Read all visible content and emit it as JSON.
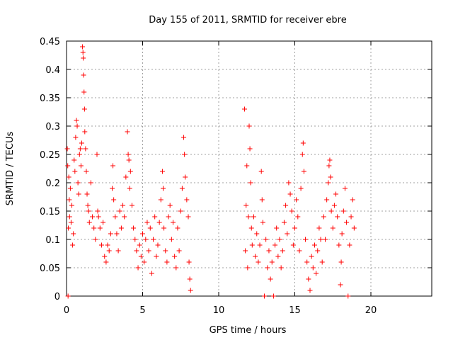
{
  "chart_data": {
    "type": "scatter",
    "title": "Day 155 of 2011, SRMTID for receiver ebre",
    "xlabel": "GPS time / hours",
    "ylabel": "SRMTID / TECUs",
    "xlim": [
      0,
      24
    ],
    "ylim": [
      0,
      0.45
    ],
    "x_ticks": [
      0,
      5,
      10,
      15,
      20
    ],
    "y_ticks": [
      0,
      0.05,
      0.1,
      0.15,
      0.2,
      0.25,
      0.3,
      0.35,
      0.4,
      0.45
    ],
    "x_tick_labels": [
      "0",
      "5",
      "10",
      "15",
      "20"
    ],
    "y_tick_labels": [
      "0",
      "0.05",
      "0.1",
      "0.15",
      "0.2",
      "0.25",
      "0.3",
      "0.35",
      "0.4",
      "0.45"
    ],
    "grid": true,
    "marker": "+",
    "color": "#ff0000",
    "series": [
      {
        "name": "SRMTID",
        "points": [
          [
            0.05,
            0.26
          ],
          [
            0.08,
            0.23
          ],
          [
            0.1,
            0.0
          ],
          [
            0.12,
            0.12
          ],
          [
            0.15,
            0.21
          ],
          [
            0.18,
            0.17
          ],
          [
            0.2,
            0.14
          ],
          [
            0.25,
            0.19
          ],
          [
            0.3,
            0.13
          ],
          [
            0.35,
            0.16
          ],
          [
            0.4,
            0.09
          ],
          [
            0.45,
            0.11
          ],
          [
            0.5,
            0.24
          ],
          [
            0.55,
            0.22
          ],
          [
            0.6,
            0.28
          ],
          [
            0.65,
            0.31
          ],
          [
            0.7,
            0.3
          ],
          [
            0.75,
            0.2
          ],
          [
            0.8,
            0.18
          ],
          [
            0.85,
            0.25
          ],
          [
            0.9,
            0.26
          ],
          [
            0.95,
            0.23
          ],
          [
            1.0,
            0.27
          ],
          [
            1.05,
            0.44
          ],
          [
            1.08,
            0.43
          ],
          [
            1.1,
            0.42
          ],
          [
            1.12,
            0.39
          ],
          [
            1.15,
            0.36
          ],
          [
            1.18,
            0.33
          ],
          [
            1.2,
            0.29
          ],
          [
            1.25,
            0.26
          ],
          [
            1.3,
            0.22
          ],
          [
            1.35,
            0.18
          ],
          [
            1.4,
            0.16
          ],
          [
            1.45,
            0.15
          ],
          [
            1.5,
            0.13
          ],
          [
            1.6,
            0.2
          ],
          [
            1.7,
            0.14
          ],
          [
            1.8,
            0.12
          ],
          [
            1.9,
            0.1
          ],
          [
            2.0,
            0.25
          ],
          [
            2.05,
            0.15
          ],
          [
            2.1,
            0.14
          ],
          [
            2.2,
            0.12
          ],
          [
            2.3,
            0.09
          ],
          [
            2.4,
            0.13
          ],
          [
            2.5,
            0.07
          ],
          [
            2.6,
            0.06
          ],
          [
            2.7,
            0.09
          ],
          [
            2.8,
            0.08
          ],
          [
            2.9,
            0.11
          ],
          [
            3.0,
            0.19
          ],
          [
            3.05,
            0.23
          ],
          [
            3.1,
            0.17
          ],
          [
            3.2,
            0.14
          ],
          [
            3.3,
            0.11
          ],
          [
            3.4,
            0.08
          ],
          [
            3.5,
            0.15
          ],
          [
            3.6,
            0.12
          ],
          [
            3.7,
            0.16
          ],
          [
            3.8,
            0.14
          ],
          [
            3.9,
            0.21
          ],
          [
            4.0,
            0.29
          ],
          [
            4.05,
            0.25
          ],
          [
            4.1,
            0.24
          ],
          [
            4.15,
            0.19
          ],
          [
            4.2,
            0.22
          ],
          [
            4.3,
            0.16
          ],
          [
            4.4,
            0.12
          ],
          [
            4.5,
            0.1
          ],
          [
            4.6,
            0.08
          ],
          [
            4.7,
            0.05
          ],
          [
            4.8,
            0.09
          ],
          [
            4.9,
            0.07
          ],
          [
            5.0,
            0.11
          ],
          [
            5.1,
            0.06
          ],
          [
            5.2,
            0.1
          ],
          [
            5.3,
            0.13
          ],
          [
            5.4,
            0.08
          ],
          [
            5.5,
            0.12
          ],
          [
            5.6,
            0.04
          ],
          [
            5.7,
            0.1
          ],
          [
            5.8,
            0.14
          ],
          [
            5.9,
            0.07
          ],
          [
            6.0,
            0.09
          ],
          [
            6.1,
            0.13
          ],
          [
            6.2,
            0.17
          ],
          [
            6.3,
            0.22
          ],
          [
            6.35,
            0.19
          ],
          [
            6.4,
            0.12
          ],
          [
            6.5,
            0.08
          ],
          [
            6.6,
            0.06
          ],
          [
            6.7,
            0.14
          ],
          [
            6.8,
            0.16
          ],
          [
            6.9,
            0.1
          ],
          [
            7.0,
            0.13
          ],
          [
            7.1,
            0.07
          ],
          [
            7.2,
            0.05
          ],
          [
            7.3,
            0.12
          ],
          [
            7.4,
            0.08
          ],
          [
            7.5,
            0.15
          ],
          [
            7.6,
            0.19
          ],
          [
            7.7,
            0.28
          ],
          [
            7.75,
            0.25
          ],
          [
            7.8,
            0.21
          ],
          [
            7.9,
            0.17
          ],
          [
            8.0,
            0.14
          ],
          [
            8.05,
            0.06
          ],
          [
            8.1,
            0.03
          ],
          [
            8.15,
            0.01
          ],
          [
            11.7,
            0.33
          ],
          [
            11.75,
            0.08
          ],
          [
            11.8,
            0.16
          ],
          [
            11.85,
            0.23
          ],
          [
            11.9,
            0.05
          ],
          [
            11.95,
            0.14
          ],
          [
            12.0,
            0.3
          ],
          [
            12.05,
            0.26
          ],
          [
            12.1,
            0.2
          ],
          [
            12.15,
            0.12
          ],
          [
            12.2,
            0.09
          ],
          [
            12.3,
            0.14
          ],
          [
            12.4,
            0.07
          ],
          [
            12.5,
            0.11
          ],
          [
            12.6,
            0.06
          ],
          [
            12.7,
            0.09
          ],
          [
            12.8,
            0.22
          ],
          [
            12.85,
            0.17
          ],
          [
            12.9,
            0.13
          ],
          [
            13.0,
            0.0
          ],
          [
            13.1,
            0.1
          ],
          [
            13.2,
            0.05
          ],
          [
            13.3,
            0.08
          ],
          [
            13.4,
            0.03
          ],
          [
            13.5,
            0.06
          ],
          [
            13.6,
            0.0
          ],
          [
            13.7,
            0.09
          ],
          [
            13.8,
            0.12
          ],
          [
            13.9,
            0.07
          ],
          [
            14.0,
            0.1
          ],
          [
            14.1,
            0.05
          ],
          [
            14.2,
            0.08
          ],
          [
            14.3,
            0.13
          ],
          [
            14.4,
            0.16
          ],
          [
            14.5,
            0.11
          ],
          [
            14.6,
            0.2
          ],
          [
            14.7,
            0.18
          ],
          [
            14.8,
            0.15
          ],
          [
            14.9,
            0.09
          ],
          [
            15.0,
            0.12
          ],
          [
            15.1,
            0.17
          ],
          [
            15.2,
            0.14
          ],
          [
            15.3,
            0.08
          ],
          [
            15.4,
            0.19
          ],
          [
            15.5,
            0.25
          ],
          [
            15.55,
            0.27
          ],
          [
            15.6,
            0.22
          ],
          [
            15.7,
            0.1
          ],
          [
            15.8,
            0.06
          ],
          [
            15.9,
            0.03
          ],
          [
            16.0,
            0.01
          ],
          [
            16.1,
            0.07
          ],
          [
            16.2,
            0.05
          ],
          [
            16.3,
            0.09
          ],
          [
            16.4,
            0.04
          ],
          [
            16.5,
            0.08
          ],
          [
            16.6,
            0.12
          ],
          [
            16.7,
            0.1
          ],
          [
            16.8,
            0.06
          ],
          [
            16.9,
            0.14
          ],
          [
            17.0,
            0.1
          ],
          [
            17.1,
            0.17
          ],
          [
            17.2,
            0.2
          ],
          [
            17.25,
            0.23
          ],
          [
            17.3,
            0.24
          ],
          [
            17.35,
            0.21
          ],
          [
            17.4,
            0.15
          ],
          [
            17.5,
            0.12
          ],
          [
            17.6,
            0.16
          ],
          [
            17.7,
            0.18
          ],
          [
            17.8,
            0.14
          ],
          [
            17.9,
            0.09
          ],
          [
            18.0,
            0.02
          ],
          [
            18.05,
            0.06
          ],
          [
            18.1,
            0.11
          ],
          [
            18.2,
            0.15
          ],
          [
            18.3,
            0.19
          ],
          [
            18.4,
            0.13
          ],
          [
            18.5,
            0.0
          ],
          [
            18.6,
            0.09
          ],
          [
            18.7,
            0.14
          ],
          [
            18.8,
            0.17
          ],
          [
            18.9,
            0.12
          ]
        ]
      }
    ]
  }
}
